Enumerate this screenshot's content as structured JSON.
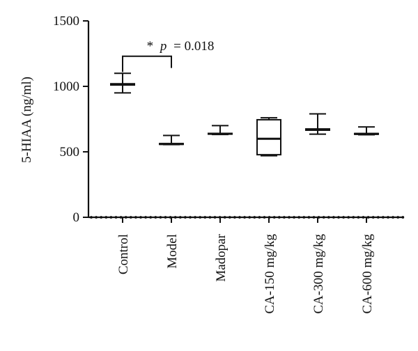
{
  "chart_data": {
    "type": "box",
    "title": "",
    "xlabel": "",
    "ylabel": "5-HIAA (ng/ml)",
    "ylim": [
      0,
      1500
    ],
    "yticks": [
      0,
      500,
      1000,
      1500
    ],
    "ytick_labels": [
      "0",
      "500",
      "1000",
      "1500"
    ],
    "categories": [
      "Control",
      "Model",
      "Madopar",
      "CA-150 mg/kg",
      "CA-300 mg/kg",
      "CA-600 mg/kg"
    ],
    "boxes": [
      {
        "min": 950,
        "q1": 1010,
        "median": 1015,
        "q3": 1020,
        "max": 1100
      },
      {
        "min": 555,
        "q1": 557,
        "median": 560,
        "q3": 563,
        "max": 625
      },
      {
        "min": 632,
        "q1": 635,
        "median": 638,
        "q3": 641,
        "max": 700
      },
      {
        "min": 470,
        "q1": 478,
        "median": 600,
        "q3": 745,
        "max": 760
      },
      {
        "min": 635,
        "q1": 665,
        "median": 670,
        "q3": 675,
        "max": 790
      },
      {
        "min": 630,
        "q1": 634,
        "median": 637,
        "q3": 640,
        "max": 690
      }
    ],
    "annotation": {
      "star": "*",
      "p_label": "p",
      "text": "= 0.018",
      "from": "Control",
      "to": "Model",
      "y": 1230
    }
  }
}
